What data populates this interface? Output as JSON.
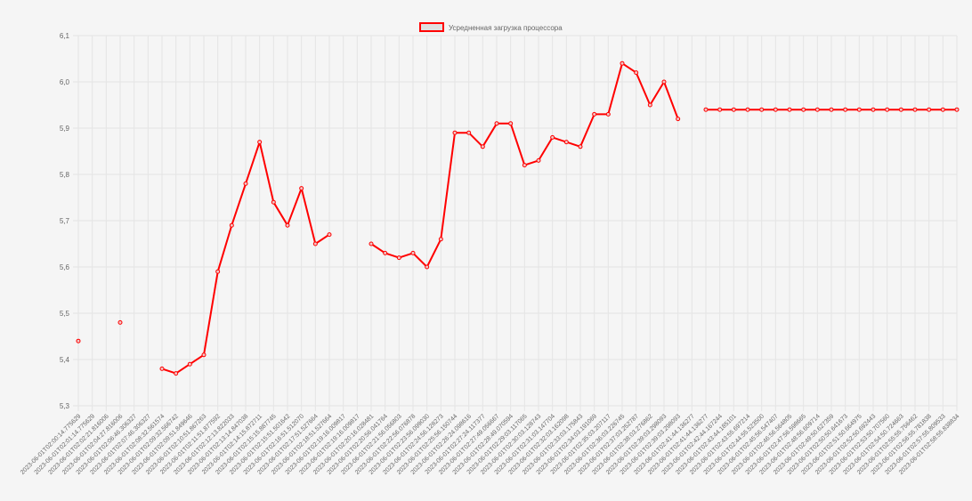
{
  "chart_data": {
    "type": "line",
    "title": "",
    "xlabel": "",
    "ylabel": "",
    "legend_position": "top-center",
    "grid": true,
    "ylim": [
      5.3,
      6.1
    ],
    "yticks": [
      "5,3",
      "5,4",
      "5,5",
      "5,6",
      "5,7",
      "5,8",
      "5,9",
      "6,0",
      "6,1"
    ],
    "colors": {
      "line": "#ff0000",
      "legend_fill": "#e0e0e0",
      "grid": "#e4e4e4",
      "text": "#666666"
    },
    "categories": [
      "2023-06-01T02:00:14.775629",
      "2023-06-01T02:01:14.775629",
      "2023-06-01T02:02:21.816006",
      "2023-06-01T02:04:27.816006",
      "2023-06-01T02:06:46.306327",
      "2023-06-01T02:07:46.306327",
      "2023-06-01T02:08:32.561574",
      "2023-06-01T02:09:32.566742",
      "2023-06-01T02:09:51.849646",
      "2023-06-01T02:10:51.867263",
      "2023-06-01T02:11:51.877592",
      "2023-06-01T02:12:13.822033",
      "2023-06-01T02:13:14.847038",
      "2023-06-01T02:14:15.872711",
      "2023-06-01T02:15:15.887745",
      "2023-06-01T02:15:51.501642",
      "2023-06-01T02:16:51.512070",
      "2023-06-01T02:17:51.527664",
      "2023-06-01T02:18:51.527664",
      "2023-06-01T02:19:16.009817",
      "2023-06-01T02:19:16.009817",
      "2023-06-01T02:20:16.028481",
      "2023-06-01T02:20:56.041764",
      "2023-06-01T02:21:56.056803",
      "2023-06-01T02:22:56.076878",
      "2023-06-01T02:23:56.099030",
      "2023-06-01T02:24:56.128273",
      "2023-06-01T02:25:56.150744",
      "2023-06-01T02:26:24.098616",
      "2023-06-01T02:27:24.117377",
      "2023-06-01T02:27:49.056667",
      "2023-06-01T02:28:49.070594",
      "2023-06-01T02:29:03.117065",
      "2023-06-01T02:30:03.128743",
      "2023-06-01T02:31:03.147704",
      "2023-06-01T02:32:03.162098",
      "2023-06-01T02:33:03.175843",
      "2023-06-01T02:34:03.191069",
      "2023-06-01T02:35:03.207117",
      "2023-06-01T02:36:03.226745",
      "2023-06-01T02:37:03.252787",
      "2023-06-01T02:38:03.276862",
      "2023-06-01T02:39:03.298093",
      "2023-06-01T02:39:03.298093",
      "2023-06-01T02:41:44.136277",
      "2023-06-01T02:41:44.136277",
      "2023-06-01T02:42:44.167244",
      "2023-06-01T02:43:44.185101",
      "2023-06-01T02:43:55.697214",
      "2023-06-01T02:44:55.523500",
      "2023-06-01T02:45:56.547407",
      "2023-06-01T02:46:56.564805",
      "2023-06-01T02:47:56.598665",
      "2023-06-01T02:48:56.609714",
      "2023-06-01T02:49:50.627359",
      "2023-06-01T02:50:50.641673",
      "2023-06-01T02:51:50.664975",
      "2023-06-01T02:52:50.692443",
      "2023-06-01T02:53:50.707560",
      "2023-06-01T02:54:50.724663",
      "2023-06-01T02:55:55.756462",
      "2023-06-01T02:56:55.781838",
      "2023-06-01T02:57:55.809533",
      "2023-06-01T02:58:55.838834"
    ],
    "series": [
      {
        "name": "Усредненная загрузка процессора",
        "values": [
          5.44,
          null,
          null,
          5.48,
          null,
          null,
          5.38,
          5.37,
          5.39,
          5.41,
          5.59,
          5.69,
          5.78,
          5.87,
          5.74,
          5.69,
          5.77,
          5.65,
          5.67,
          null,
          null,
          5.65,
          5.63,
          5.62,
          5.63,
          5.6,
          5.66,
          5.89,
          5.89,
          5.86,
          5.91,
          5.91,
          5.82,
          5.83,
          5.88,
          5.87,
          5.86,
          5.93,
          5.93,
          6.04,
          6.02,
          5.95,
          6.0,
          5.92,
          null,
          5.94,
          5.94,
          5.94,
          5.94,
          5.94,
          5.94,
          5.94,
          5.94,
          5.94,
          5.94,
          5.94,
          5.94,
          5.94,
          5.94,
          5.94,
          5.94,
          5.94,
          5.94,
          5.94
        ]
      }
    ]
  }
}
